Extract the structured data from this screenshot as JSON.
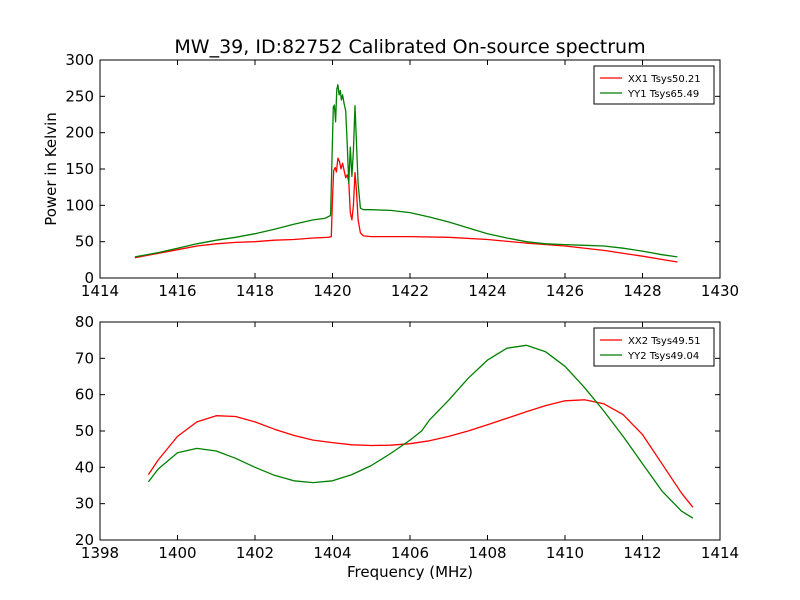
{
  "chart_data": [
    {
      "type": "line",
      "title": "MW_39, ID:82752 Calibrated On-source spectrum",
      "xlabel": "",
      "ylabel": "Power in Kelvin",
      "xlim": [
        1414,
        1430
      ],
      "ylim": [
        0,
        300
      ],
      "xticks": [
        1414,
        1416,
        1418,
        1420,
        1422,
        1424,
        1426,
        1428,
        1430
      ],
      "yticks": [
        0,
        50,
        100,
        150,
        200,
        250,
        300
      ],
      "grid": false,
      "legend_position": "top-right",
      "series": [
        {
          "name": "XX1 Tsys50.21",
          "color": "#ff0000",
          "points": [
            [
              1414.9,
              28
            ],
            [
              1415.5,
              34
            ],
            [
              1416.0,
              39
            ],
            [
              1416.5,
              44
            ],
            [
              1417.0,
              47
            ],
            [
              1417.5,
              49
            ],
            [
              1418.0,
              50
            ],
            [
              1418.5,
              52
            ],
            [
              1419.0,
              53
            ],
            [
              1419.5,
              55
            ],
            [
              1419.9,
              56
            ],
            [
              1419.97,
              57
            ],
            [
              1420.0,
              110
            ],
            [
              1420.03,
              148
            ],
            [
              1420.07,
              152
            ],
            [
              1420.1,
              146
            ],
            [
              1420.14,
              165
            ],
            [
              1420.18,
              160
            ],
            [
              1420.22,
              150
            ],
            [
              1420.26,
              158
            ],
            [
              1420.3,
              148
            ],
            [
              1420.34,
              138
            ],
            [
              1420.38,
              142
            ],
            [
              1420.42,
              132
            ],
            [
              1420.46,
              90
            ],
            [
              1420.5,
              80
            ],
            [
              1420.54,
              100
            ],
            [
              1420.58,
              145
            ],
            [
              1420.62,
              120
            ],
            [
              1420.66,
              80
            ],
            [
              1420.72,
              62
            ],
            [
              1420.8,
              58
            ],
            [
              1421.0,
              57
            ],
            [
              1422.0,
              57
            ],
            [
              1423.0,
              56
            ],
            [
              1424.0,
              53
            ],
            [
              1425.0,
              48
            ],
            [
              1426.0,
              44
            ],
            [
              1427.0,
              38
            ],
            [
              1428.0,
              30
            ],
            [
              1428.9,
              22
            ]
          ]
        },
        {
          "name": "YY1 Tsys65.49",
          "color": "#008000",
          "points": [
            [
              1414.9,
              29
            ],
            [
              1415.5,
              35
            ],
            [
              1416.0,
              41
            ],
            [
              1416.5,
              47
            ],
            [
              1417.0,
              52
            ],
            [
              1417.5,
              56
            ],
            [
              1418.0,
              61
            ],
            [
              1418.5,
              67
            ],
            [
              1419.0,
              74
            ],
            [
              1419.5,
              80
            ],
            [
              1419.8,
              82
            ],
            [
              1419.95,
              86
            ],
            [
              1419.99,
              170
            ],
            [
              1420.02,
              235
            ],
            [
              1420.05,
              238
            ],
            [
              1420.08,
              215
            ],
            [
              1420.11,
              260
            ],
            [
              1420.14,
              266
            ],
            [
              1420.17,
              252
            ],
            [
              1420.2,
              258
            ],
            [
              1420.23,
              245
            ],
            [
              1420.26,
              252
            ],
            [
              1420.3,
              240
            ],
            [
              1420.34,
              230
            ],
            [
              1420.38,
              185
            ],
            [
              1420.42,
              130
            ],
            [
              1420.46,
              180
            ],
            [
              1420.5,
              140
            ],
            [
              1420.54,
              175
            ],
            [
              1420.58,
              237
            ],
            [
              1420.62,
              185
            ],
            [
              1420.66,
              130
            ],
            [
              1420.72,
              96
            ],
            [
              1420.8,
              94
            ],
            [
              1421.0,
              94
            ],
            [
              1421.5,
              93
            ],
            [
              1422.0,
              90
            ],
            [
              1422.5,
              84
            ],
            [
              1423.0,
              77
            ],
            [
              1423.5,
              69
            ],
            [
              1424.0,
              61
            ],
            [
              1424.5,
              55
            ],
            [
              1425.0,
              50
            ],
            [
              1425.5,
              47
            ],
            [
              1426.0,
              46
            ],
            [
              1426.5,
              45
            ],
            [
              1427.0,
              44
            ],
            [
              1427.5,
              41
            ],
            [
              1428.0,
              37
            ],
            [
              1428.5,
              32
            ],
            [
              1428.9,
              29
            ]
          ]
        }
      ]
    },
    {
      "type": "line",
      "title": "",
      "xlabel": "Frequency (MHz)",
      "ylabel": "",
      "xlim": [
        1398,
        1414
      ],
      "ylim": [
        20,
        80
      ],
      "xticks": [
        1398,
        1400,
        1402,
        1404,
        1406,
        1408,
        1410,
        1412,
        1414
      ],
      "yticks": [
        20,
        30,
        40,
        50,
        60,
        70,
        80
      ],
      "grid": false,
      "legend_position": "top-right",
      "series": [
        {
          "name": "XX2 Tsys49.51",
          "color": "#ff0000",
          "points": [
            [
              1399.25,
              38
            ],
            [
              1399.5,
              42
            ],
            [
              1400.0,
              48.5
            ],
            [
              1400.5,
              52.5
            ],
            [
              1401.0,
              54.2
            ],
            [
              1401.5,
              54
            ],
            [
              1402.0,
              52.5
            ],
            [
              1402.5,
              50.5
            ],
            [
              1403.0,
              48.8
            ],
            [
              1403.5,
              47.5
            ],
            [
              1404.0,
              46.8
            ],
            [
              1404.5,
              46.2
            ],
            [
              1405.0,
              46
            ],
            [
              1405.5,
              46.1
            ],
            [
              1406.0,
              46.5
            ],
            [
              1406.5,
              47.3
            ],
            [
              1407.0,
              48.5
            ],
            [
              1407.5,
              50
            ],
            [
              1408.0,
              51.7
            ],
            [
              1408.5,
              53.5
            ],
            [
              1409.0,
              55.3
            ],
            [
              1409.5,
              57
            ],
            [
              1410.0,
              58.3
            ],
            [
              1410.5,
              58.6
            ],
            [
              1411.0,
              57.5
            ],
            [
              1411.5,
              54.5
            ],
            [
              1412.0,
              49
            ],
            [
              1412.5,
              41
            ],
            [
              1413.0,
              33
            ],
            [
              1413.3,
              29
            ]
          ]
        },
        {
          "name": "YY2 Tsys49.04",
          "color": "#008000",
          "points": [
            [
              1399.25,
              36
            ],
            [
              1399.5,
              39.5
            ],
            [
              1400.0,
              44
            ],
            [
              1400.5,
              45.2
            ],
            [
              1401.0,
              44.5
            ],
            [
              1401.5,
              42.5
            ],
            [
              1402.0,
              40
            ],
            [
              1402.5,
              37.8
            ],
            [
              1403.0,
              36.3
            ],
            [
              1403.5,
              35.8
            ],
            [
              1404.0,
              36.3
            ],
            [
              1404.5,
              38
            ],
            [
              1405.0,
              40.5
            ],
            [
              1405.5,
              43.8
            ],
            [
              1406.0,
              47.5
            ],
            [
              1406.3,
              50
            ],
            [
              1406.5,
              53
            ],
            [
              1407.0,
              58.5
            ],
            [
              1407.5,
              64.5
            ],
            [
              1408.0,
              69.5
            ],
            [
              1408.5,
              72.8
            ],
            [
              1409.0,
              73.6
            ],
            [
              1409.5,
              71.8
            ],
            [
              1410.0,
              67.8
            ],
            [
              1410.5,
              62
            ],
            [
              1411.0,
              55.5
            ],
            [
              1411.5,
              48.5
            ],
            [
              1412.0,
              41
            ],
            [
              1412.5,
              33.5
            ],
            [
              1413.0,
              28
            ],
            [
              1413.3,
              26
            ]
          ]
        }
      ]
    }
  ]
}
